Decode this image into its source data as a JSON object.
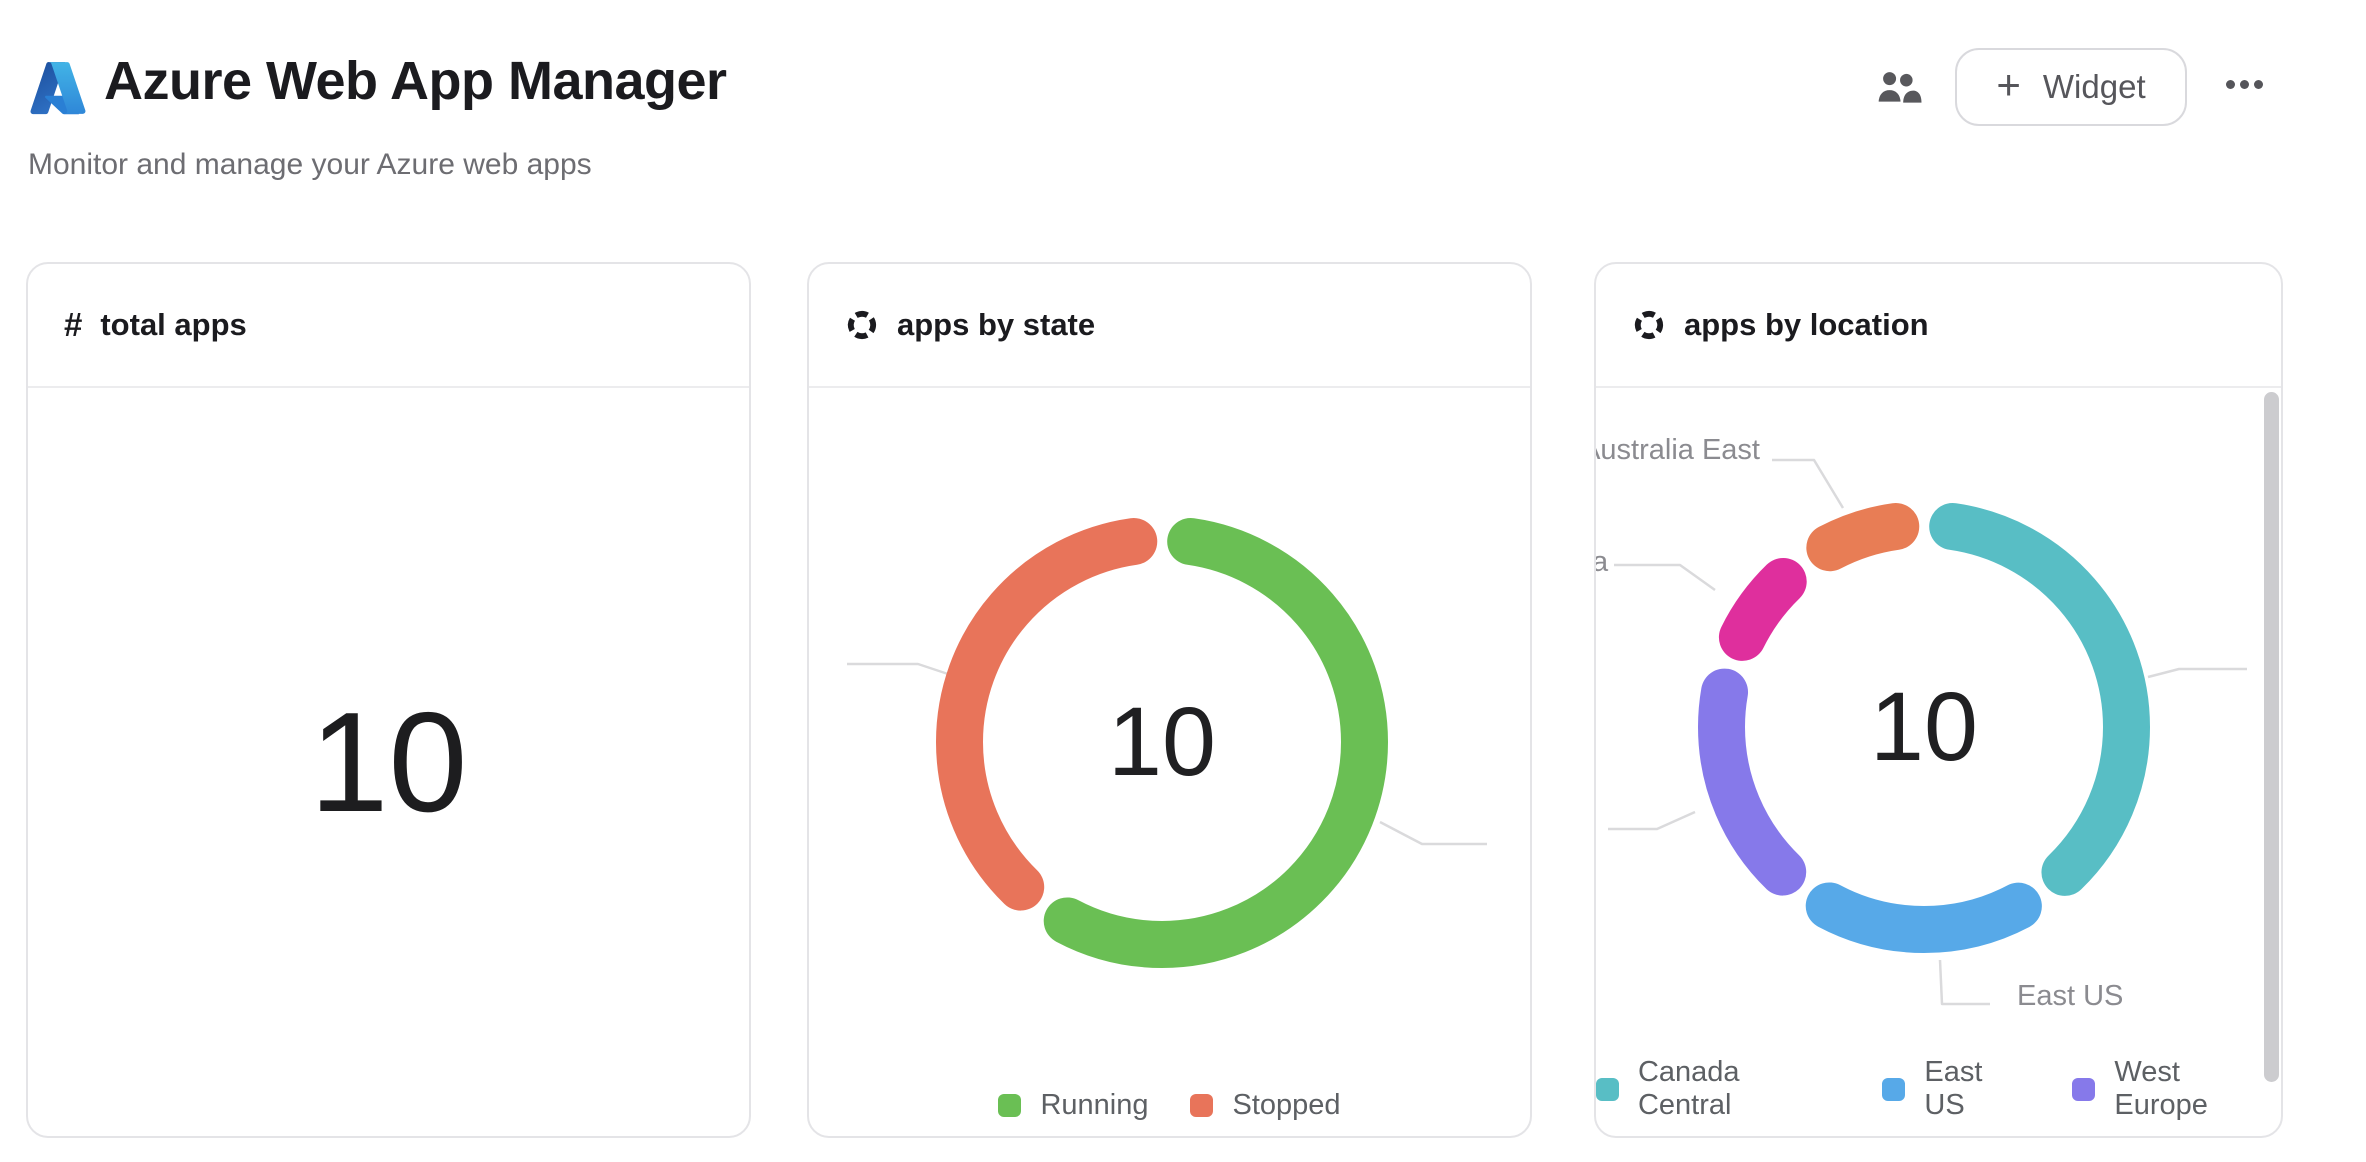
{
  "header": {
    "title": "Azure Web App Manager",
    "subtitle": "Monitor and manage your Azure web apps",
    "actions": {
      "plus": "+",
      "widget_label": "Widget"
    }
  },
  "cards": [
    {
      "title": "total apps",
      "icon": "hash-icon",
      "icon_glyph": "#",
      "value": "10"
    },
    {
      "title": "apps by state",
      "icon": "donut-chart-icon"
    },
    {
      "title": "apps by location",
      "icon": "donut-chart-icon"
    }
  ],
  "chart_data": [
    {
      "type": "donut",
      "title": "apps by state",
      "center_label": "10",
      "total": 10,
      "segments": [
        {
          "label": "Running",
          "value": 6,
          "color": "#6abf54"
        },
        {
          "label": "Stopped",
          "value": 4,
          "color": "#e8745a"
        }
      ],
      "legend": [
        "Running",
        "Stopped"
      ],
      "legend_position": "bottom",
      "slice_labels": []
    },
    {
      "type": "donut",
      "title": "apps by location",
      "center_label": "10",
      "total": 10,
      "segments": [
        {
          "label": "Canada Central",
          "value": 4,
          "color": "#58bec5"
        },
        {
          "label": "East US",
          "value": 2,
          "color": "#57a9e8"
        },
        {
          "label": "West Europe",
          "value": 2,
          "color": "#8679ea"
        },
        {
          "label": "a",
          "value": 1,
          "color": "#df2f9d"
        },
        {
          "label": "Australia East",
          "value": 1,
          "color": "#e87d55"
        }
      ],
      "legend": [
        "Canada Central",
        "East US",
        "West Europe"
      ],
      "legend_position": "bottom",
      "slice_labels": [
        {
          "text": "Australia East"
        },
        {
          "text": "a"
        },
        {
          "text": "East US"
        }
      ]
    }
  ]
}
